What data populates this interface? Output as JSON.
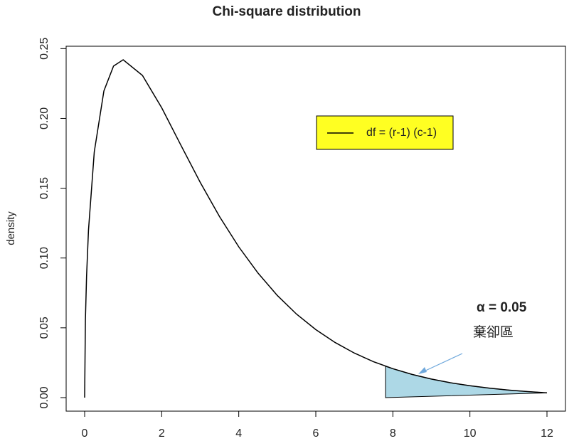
{
  "chart_data": {
    "type": "line",
    "title": "Chi-square distribution",
    "ylabel": "density",
    "x": [
      0,
      0.02,
      0.05,
      0.1,
      0.25,
      0.5,
      0.75,
      1,
      1.5,
      2,
      2.5,
      3,
      3.5,
      4,
      4.5,
      5,
      5.5,
      6,
      6.5,
      7,
      7.5,
      8,
      8.5,
      9,
      9.5,
      10,
      10.5,
      11,
      11.5,
      12
    ],
    "series": [
      {
        "name": "df = (r-1) (c-1)",
        "color": "#000000",
        "values": [
          0,
          0.0559,
          0.087,
          0.12,
          0.176,
          0.2197,
          0.2375,
          0.242,
          0.2308,
          0.2076,
          0.1807,
          0.1542,
          0.1297,
          0.108,
          0.0892,
          0.0732,
          0.0598,
          0.0487,
          0.0395,
          0.0319,
          0.0257,
          0.0207,
          0.0166,
          0.0133,
          0.0106,
          0.0085,
          0.0068,
          0.0054,
          0.0043,
          0.0034
        ]
      }
    ],
    "shade": {
      "color": "#add8e6",
      "x": [
        7.81,
        8,
        8.5,
        9,
        9.5,
        10,
        10.5,
        11,
        11.5,
        12
      ],
      "values": [
        0.0224,
        0.0207,
        0.0166,
        0.0133,
        0.0106,
        0.0085,
        0.0068,
        0.0054,
        0.0043,
        0.0034
      ]
    },
    "annotations": [
      "α = 0.05",
      "棄卻區"
    ],
    "xlim": [
      -0.48,
      12.48
    ],
    "ylim": [
      -0.0097,
      0.2517
    ],
    "xticks": [
      0,
      2,
      4,
      6,
      8,
      10,
      12
    ],
    "yticks": [
      {
        "value": 0,
        "label": "0.00"
      },
      {
        "value": 0.05,
        "label": "0.05"
      },
      {
        "value": 0.1,
        "label": "0.10"
      },
      {
        "value": 0.15,
        "label": "0.15"
      },
      {
        "value": 0.2,
        "label": "0.20"
      },
      {
        "value": 0.25,
        "label": "0.25"
      }
    ],
    "legend": "top-right",
    "legend_color": "#ffff22"
  }
}
